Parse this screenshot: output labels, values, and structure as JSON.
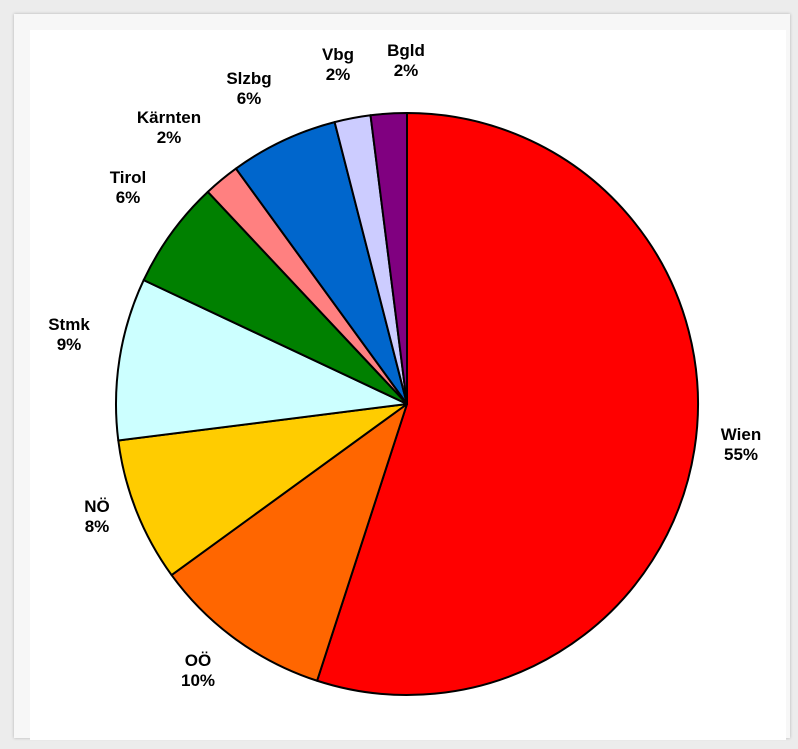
{
  "chart_data": {
    "type": "pie",
    "slices": [
      {
        "label": "Wien",
        "value": 55,
        "value_label": "55%",
        "color": "#ff0000"
      },
      {
        "label": "OÖ",
        "value": 10,
        "value_label": "10%",
        "color": "#ff6600"
      },
      {
        "label": "NÖ",
        "value": 8,
        "value_label": "8%",
        "color": "#ffcc00"
      },
      {
        "label": "Stmk",
        "value": 9,
        "value_label": "9%",
        "color": "#ccffff"
      },
      {
        "label": "Tirol",
        "value": 6,
        "value_label": "6%",
        "color": "#008000"
      },
      {
        "label": "Kärnten",
        "value": 2,
        "value_label": "2%",
        "color": "#ff8080"
      },
      {
        "label": "Slzbg",
        "value": 6,
        "value_label": "6%",
        "color": "#0066cc"
      },
      {
        "label": "Vbg",
        "value": 2,
        "value_label": "2%",
        "color": "#ccccff"
      },
      {
        "label": "Bgld",
        "value": 2,
        "value_label": "2%",
        "color": "#800080"
      }
    ],
    "start": "top",
    "direction": "clockwise",
    "legend": "none"
  }
}
